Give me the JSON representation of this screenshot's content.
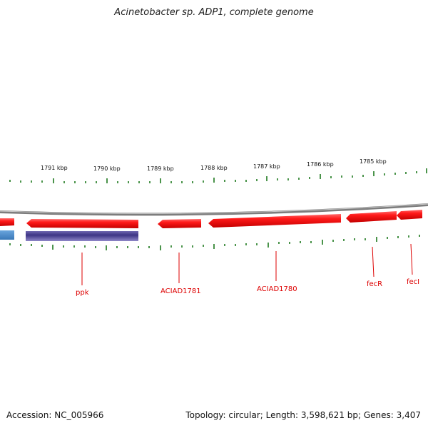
{
  "title": "Acinetobacter sp. ADP1, complete genome",
  "footer": {
    "accession": "Accession: NC_005966",
    "stats": "Topology: circular; Length: 3,598,621 bp; Genes: 3,407"
  },
  "ruler_labels": [
    "1791 kbp",
    "1790 kbp",
    "1789 kbp",
    "1788 kbp",
    "1787 kbp",
    "1786 kbp",
    "1785 kbp"
  ],
  "genes": [
    {
      "name": "ppk"
    },
    {
      "name": "ACIAD1781"
    },
    {
      "name": "ACIAD1780"
    },
    {
      "name": "fecR"
    },
    {
      "name": "fecI"
    }
  ],
  "colors": {
    "backbone": "#8a8a8a",
    "gene_forward": "#ff2020",
    "gene_reverse": "#4a3f8c",
    "gene_other": "#4f8fd0",
    "tick": "#1e7a1e",
    "label": "#dd0000"
  }
}
